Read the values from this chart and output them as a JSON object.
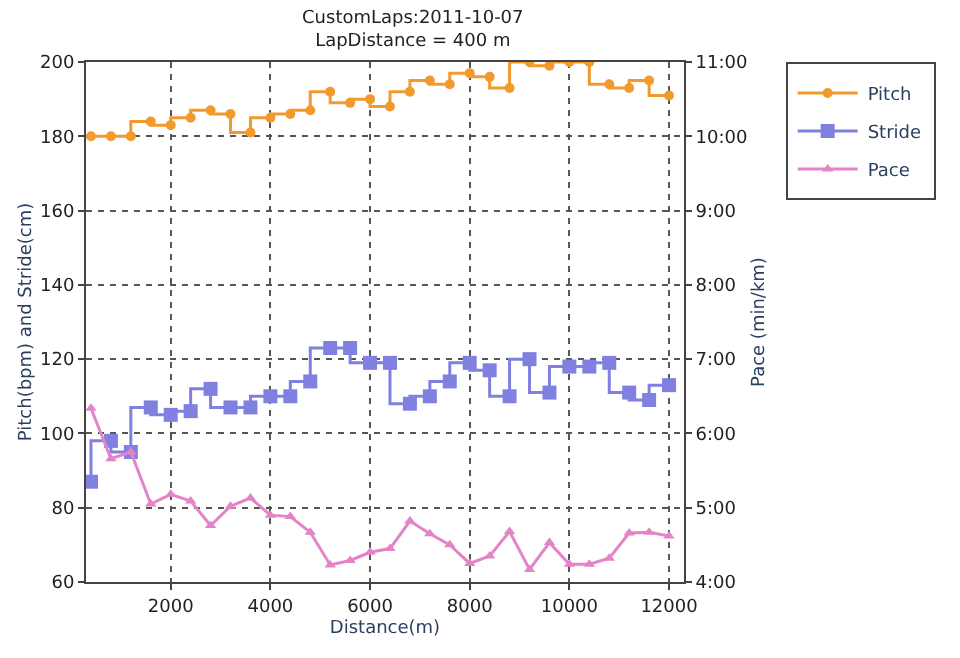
{
  "chart_data": {
    "type": "step",
    "title": "CustomLaps:2011-10-07",
    "subtitle": "LapDistance = 400 m",
    "xlabel": "Distance(m)",
    "ylabel": "Pitch(bpm) and Stride(cm)",
    "y2label": "Pace (min/km)",
    "x": [
      400,
      800,
      1200,
      1600,
      2000,
      2400,
      2800,
      3200,
      3600,
      4000,
      4400,
      4800,
      5200,
      5600,
      6000,
      6400,
      6800,
      7200,
      7600,
      8000,
      8400,
      8800,
      9200,
      9600,
      10000,
      10400,
      10800,
      11200,
      11600,
      12000
    ],
    "series": [
      {
        "name": "Pitch",
        "color": "#f29a2e",
        "marker": "circle",
        "values": [
          180,
          180,
          180,
          184,
          183,
          185,
          187,
          186,
          181,
          185,
          186,
          187,
          192,
          189,
          190,
          188,
          192,
          195,
          194,
          197,
          196,
          193,
          200,
          199,
          200,
          200,
          194,
          193,
          195,
          191
        ]
      },
      {
        "name": "Stride",
        "color": "#8080e0",
        "marker": "square",
        "values": [
          87,
          98,
          95,
          107,
          105,
          106,
          112,
          107,
          107,
          110,
          110,
          114,
          123,
          123,
          119,
          119,
          108,
          110,
          114,
          119,
          117,
          110,
          120,
          111,
          118,
          118,
          119,
          111,
          109,
          113
        ]
      },
      {
        "name": "Pace",
        "type": "line",
        "axis": "y2",
        "color": "#e484c8",
        "marker": "triangle",
        "values": [
          6.34,
          5.66,
          5.75,
          5.05,
          5.18,
          5.09,
          4.76,
          5.02,
          5.13,
          4.9,
          4.88,
          4.67,
          4.23,
          4.29,
          4.4,
          4.45,
          4.82,
          4.65,
          4.5,
          4.25,
          4.35,
          4.68,
          4.17,
          4.53,
          4.24,
          4.24,
          4.32,
          4.66,
          4.67,
          4.62
        ]
      }
    ],
    "xlim": [
      300,
      12300
    ],
    "xticks": [
      2000,
      4000,
      6000,
      8000,
      10000,
      12000
    ],
    "ylim": [
      60,
      200
    ],
    "yticks": [
      60,
      80,
      100,
      120,
      140,
      160,
      180,
      200
    ],
    "y2lim": [
      4,
      11
    ],
    "y2ticks": [
      {
        "value": 4,
        "label": "4:00"
      },
      {
        "value": 5,
        "label": "5:00"
      },
      {
        "value": 6,
        "label": "6:00"
      },
      {
        "value": 7,
        "label": "7:00"
      },
      {
        "value": 8,
        "label": "8:00"
      },
      {
        "value": 9,
        "label": "9:00"
      },
      {
        "value": 10,
        "label": "10:00"
      },
      {
        "value": 11,
        "label": "11:00"
      }
    ],
    "grid": true,
    "legend": "top right",
    "line_style": "solid"
  }
}
